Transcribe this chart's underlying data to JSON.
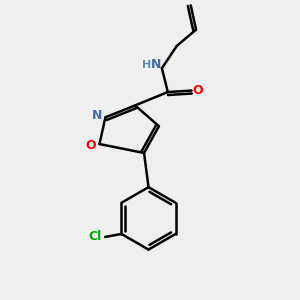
{
  "background_color": "#efefef",
  "bond_color": "#000000",
  "bond_width": 1.8,
  "atom_colors": {
    "N": "#4169b0",
    "O": "#ff0000",
    "Cl": "#00aa00",
    "H": "#6090b0"
  },
  "figsize": [
    3.0,
    3.0
  ],
  "dpi": 100
}
